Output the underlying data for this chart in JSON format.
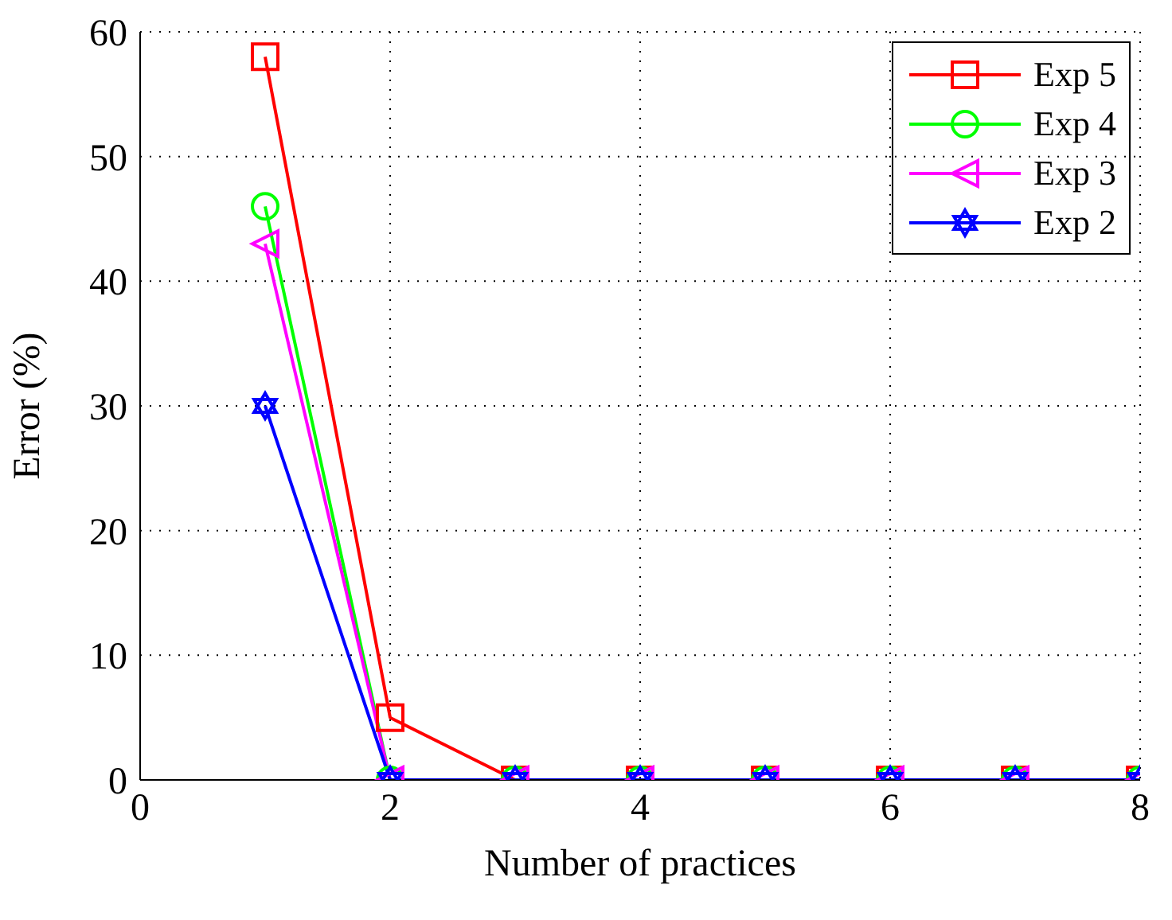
{
  "chart_data": {
    "type": "line",
    "xlabel": "Number of practices",
    "ylabel": "Error (%)",
    "x": [
      1,
      2,
      3,
      4,
      5,
      6,
      7,
      8
    ],
    "series": [
      {
        "name": "Exp 5",
        "color": "#ff0000",
        "marker": "square",
        "values": [
          58,
          5,
          0,
          0,
          0,
          0,
          0,
          0
        ]
      },
      {
        "name": "Exp 4",
        "color": "#00ff00",
        "marker": "circle",
        "values": [
          46,
          0,
          0,
          0,
          0,
          0,
          0,
          0
        ]
      },
      {
        "name": "Exp 3",
        "color": "#ff00ff",
        "marker": "triangle",
        "values": [
          43,
          0,
          0,
          0,
          0,
          0,
          0,
          0
        ]
      },
      {
        "name": "Exp 2",
        "color": "#0000ff",
        "marker": "star",
        "values": [
          30,
          0,
          0,
          0,
          0,
          0,
          0,
          0
        ]
      }
    ],
    "xlim": [
      0,
      8
    ],
    "xticks": [
      0,
      2,
      4,
      6,
      8
    ],
    "ylim": [
      0,
      60
    ],
    "yticks": [
      0,
      10,
      20,
      30,
      40,
      50,
      60
    ],
    "grid": true,
    "legend": "top right",
    "line_style": "solid"
  }
}
